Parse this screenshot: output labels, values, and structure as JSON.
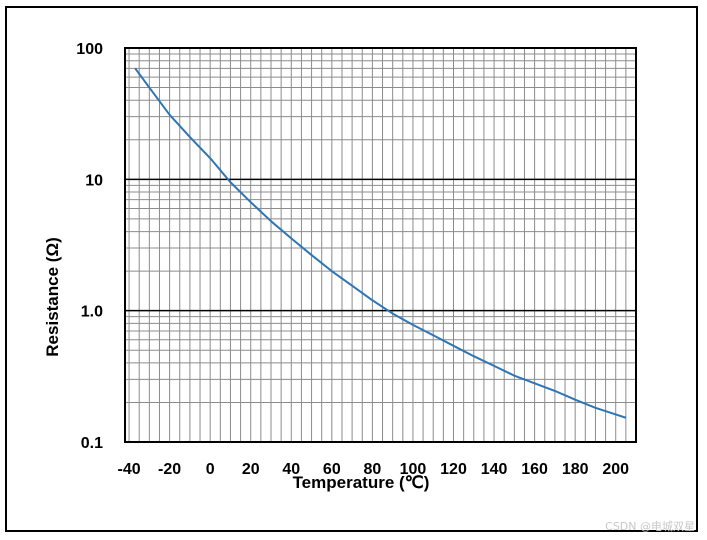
{
  "chart_data": {
    "type": "line",
    "title": "",
    "xlabel": "Temperature (℃)",
    "ylabel": "Resistance (Ω)",
    "y_scale": "log",
    "xlim": [
      -42,
      210
    ],
    "ylim": [
      0.1,
      100
    ],
    "grid": true,
    "x_ticks": [
      {
        "value": -40,
        "label": "-40"
      },
      {
        "value": -20,
        "label": "-20"
      },
      {
        "value": 0,
        "label": "0"
      },
      {
        "value": 20,
        "label": "20"
      },
      {
        "value": 40,
        "label": "40"
      },
      {
        "value": 60,
        "label": "60"
      },
      {
        "value": 80,
        "label": "80"
      },
      {
        "value": 100,
        "label": "100"
      },
      {
        "value": 120,
        "label": "120"
      },
      {
        "value": 140,
        "label": "140"
      },
      {
        "value": 160,
        "label": "160"
      },
      {
        "value": 180,
        "label": "180"
      },
      {
        "value": 200,
        "label": "200"
      }
    ],
    "y_ticks": [
      {
        "value": 100,
        "label": "100"
      },
      {
        "value": 10,
        "label": "10"
      },
      {
        "value": 1,
        "label": "1.0"
      },
      {
        "value": 0.1,
        "label": "0.1"
      }
    ],
    "series": [
      {
        "color": "#2e75b6",
        "x": [
          -37,
          -30,
          -20,
          -10,
          0,
          10,
          20,
          30,
          40,
          50,
          60,
          70,
          80,
          90,
          100,
          110,
          120,
          130,
          140,
          150,
          160,
          170,
          180,
          190,
          200,
          205
        ],
        "y": [
          70,
          50,
          31,
          21,
          14.5,
          9.5,
          6.7,
          4.8,
          3.55,
          2.65,
          2.0,
          1.55,
          1.2,
          0.95,
          0.78,
          0.65,
          0.54,
          0.45,
          0.38,
          0.32,
          0.28,
          0.245,
          0.21,
          0.182,
          0.162,
          0.153
        ]
      }
    ]
  },
  "watermark": "CSDN @电城双星"
}
